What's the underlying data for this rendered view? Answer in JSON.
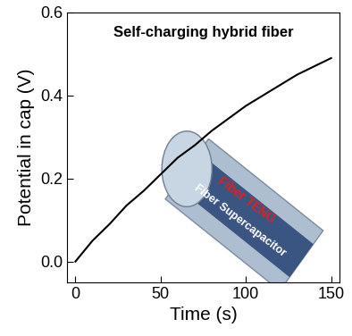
{
  "chart_data": {
    "type": "line",
    "title": "Self-charging hybrid fiber",
    "x_label": "Time (s)",
    "y_label": "Potential in cap (V)",
    "x": [
      0,
      10,
      20,
      30,
      40,
      50,
      60,
      70,
      80,
      90,
      100,
      110,
      120,
      130,
      140,
      150
    ],
    "values": [
      0.0,
      0.05,
      0.09,
      0.135,
      0.17,
      0.21,
      0.25,
      0.28,
      0.315,
      0.345,
      0.375,
      0.4,
      0.425,
      0.45,
      0.47,
      0.49
    ],
    "color": "#000000",
    "xlim": [
      -5,
      155
    ],
    "xticks": [
      0,
      50,
      100,
      150
    ],
    "ylim": [
      -0.05,
      0.6
    ],
    "yticks": [
      {
        "value": 0,
        "label": "0.0"
      },
      0.2,
      0.4,
      0.6
    ],
    "annotations": [
      {
        "text": "Fiber TENG",
        "color": "#e02020"
      },
      {
        "text": "Fiber Supercapacitor",
        "color": "#ffffff"
      }
    ]
  }
}
